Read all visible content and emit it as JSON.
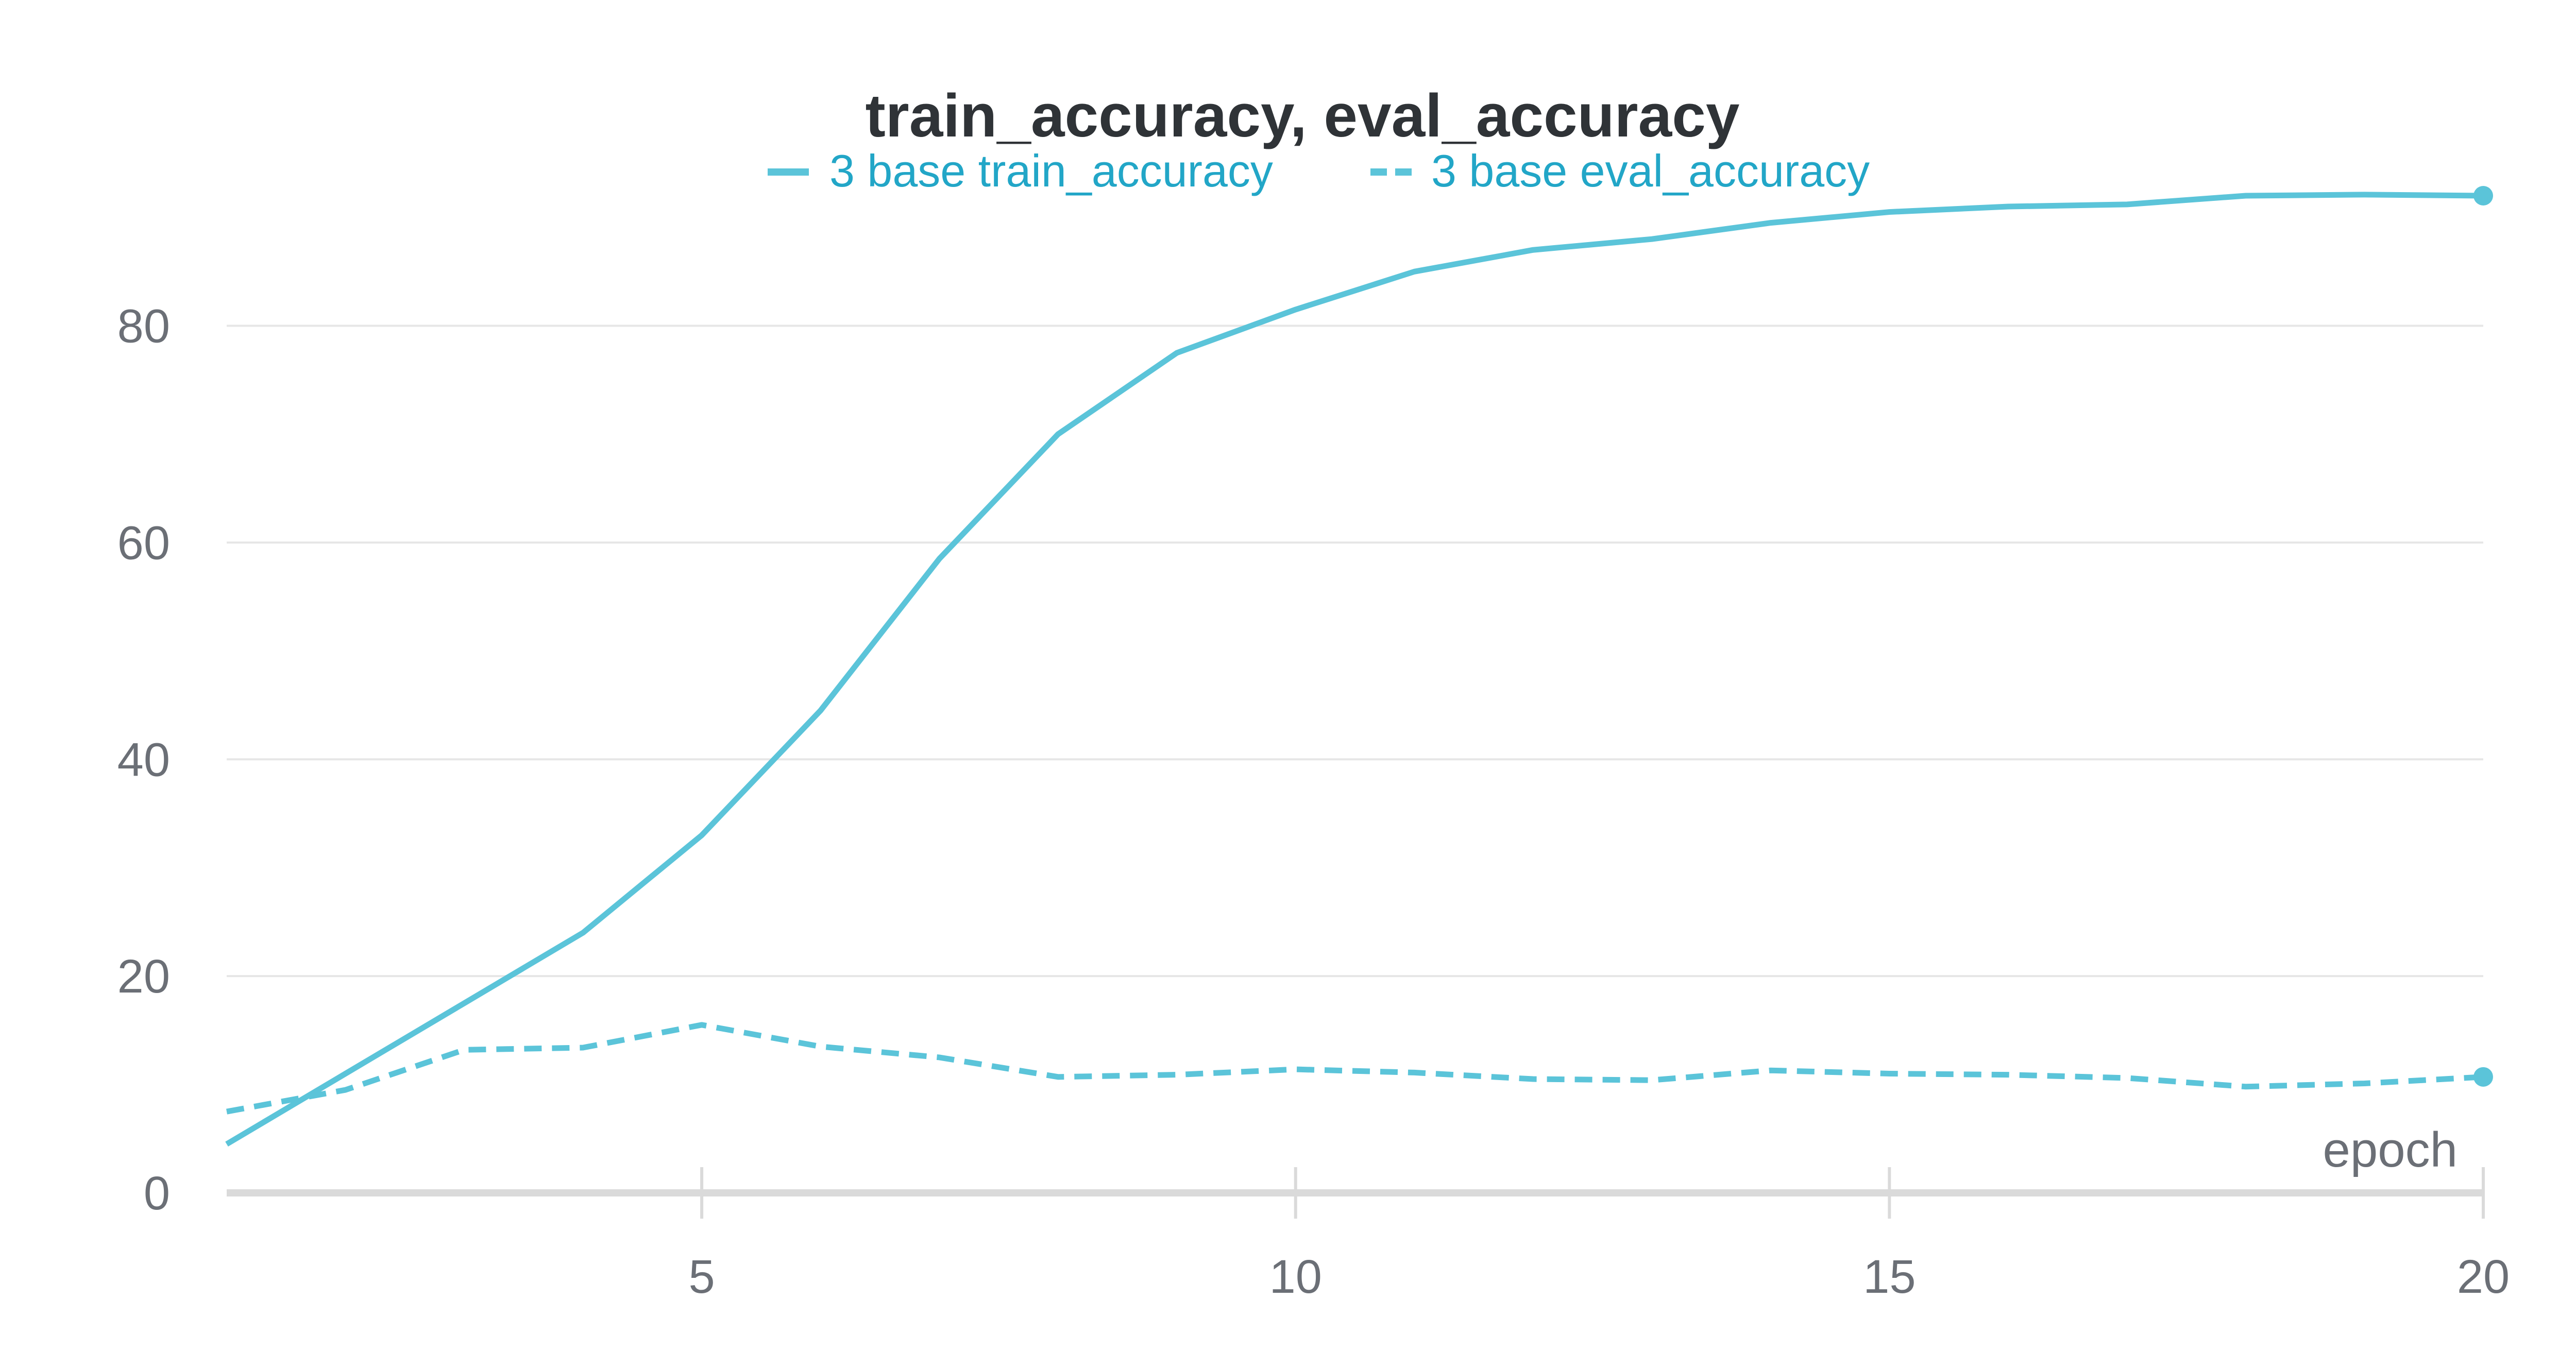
{
  "chart_data": {
    "type": "line",
    "title": "train_accuracy, eval_accuracy",
    "xlabel": "epoch",
    "ylabel": "",
    "xlim": [
      1,
      20
    ],
    "ylim": [
      0,
      92
    ],
    "x_ticks": [
      5,
      10,
      15,
      20
    ],
    "y_ticks": [
      0,
      20,
      40,
      60,
      80
    ],
    "grid": true,
    "legend_position": "top",
    "x": [
      1,
      2,
      3,
      4,
      5,
      6,
      7,
      8,
      9,
      10,
      11,
      12,
      13,
      14,
      15,
      16,
      17,
      18,
      19,
      20
    ],
    "series": [
      {
        "name": "3 base train_accuracy",
        "style": "solid",
        "color": "#5bc4d9",
        "values": [
          4.5,
          11,
          17.5,
          24,
          33,
          44.5,
          58.5,
          70,
          77.5,
          81.5,
          85,
          87,
          88,
          89.5,
          90.5,
          91,
          91.2,
          92,
          92.1,
          92
        ]
      },
      {
        "name": "3 base eval_accuracy",
        "style": "dashed",
        "color": "#5bc4d9",
        "values": [
          7.5,
          9.5,
          13.2,
          13.4,
          15.5,
          13.5,
          12.5,
          10.7,
          10.9,
          11.4,
          11.1,
          10.5,
          10.4,
          11.3,
          11.0,
          10.9,
          10.6,
          9.8,
          10.1,
          10.7
        ]
      }
    ],
    "legend_text_color": "#22a6c7",
    "grid_color": "#e6e6e6",
    "axis_color": "#dadada"
  }
}
